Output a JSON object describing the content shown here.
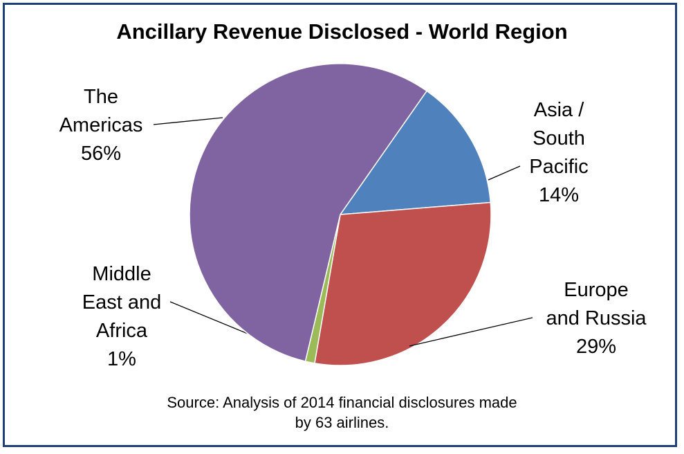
{
  "chart_data": {
    "type": "pie",
    "title": "Ancillary Revenue Disclosed - World Region",
    "slices": [
      {
        "label_lines": [
          "Asia /",
          "South",
          "Pacific",
          "14%"
        ],
        "value": 14,
        "color": "#4f81bd"
      },
      {
        "label_lines": [
          "Europe",
          "and Russia",
          "29%"
        ],
        "value": 29,
        "color": "#c0504d"
      },
      {
        "label_lines": [
          "Middle",
          "East and",
          "Africa",
          "1%"
        ],
        "value": 1,
        "color": "#9bbb59"
      },
      {
        "label_lines": [
          "The",
          "Americas",
          "56%"
        ],
        "value": 56,
        "color": "#8064a2"
      }
    ]
  },
  "source": {
    "line1": "Source:  Analysis of 2014 financial disclosures made",
    "line2": "by 63 airlines."
  },
  "colors": {
    "border": "#1f3f7a"
  }
}
